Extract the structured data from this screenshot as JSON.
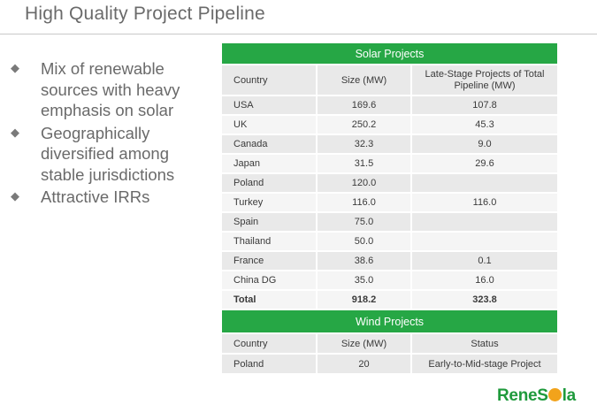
{
  "title": "High Quality Project Pipeline",
  "bullets": [
    {
      "text": "Mix of renewable sources with heavy emphasis on solar",
      "icon": "diamond-bullet-icon"
    },
    {
      "text": "Geographically diversified among stable jurisdictions",
      "icon": "diamond-bullet-icon"
    },
    {
      "text": "Attractive IRRs",
      "icon": "diamond-bullet-icon"
    }
  ],
  "bullet_glyph": "◆",
  "solar": {
    "title": "Solar Projects",
    "columns": [
      "Country",
      "Size (MW)",
      "Late-Stage Projects of Total Pipeline (MW)"
    ],
    "rows": [
      {
        "country": "USA",
        "size": "169.6",
        "late": "107.8"
      },
      {
        "country": "UK",
        "size": "250.2",
        "late": "45.3"
      },
      {
        "country": "Canada",
        "size": "32.3",
        "late": "9.0"
      },
      {
        "country": "Japan",
        "size": "31.5",
        "late": "29.6"
      },
      {
        "country": "Poland",
        "size": "120.0",
        "late": ""
      },
      {
        "country": "Turkey",
        "size": "116.0",
        "late": "116.0"
      },
      {
        "country": "Spain",
        "size": "75.0",
        "late": ""
      },
      {
        "country": "Thailand",
        "size": "50.0",
        "late": ""
      },
      {
        "country": "France",
        "size": "38.6",
        "late": "0.1"
      },
      {
        "country": "China DG",
        "size": "35.0",
        "late": "16.0"
      }
    ],
    "total": {
      "label": "Total",
      "size": "918.2",
      "late": "323.8"
    }
  },
  "wind": {
    "title": "Wind Projects",
    "columns": [
      "Country",
      "Size (MW)",
      "Status"
    ],
    "rows": [
      {
        "country": "Poland",
        "size": "20",
        "status": "Early-to-Mid-stage Project"
      }
    ]
  },
  "logo": {
    "before": "RenеS",
    "after": "la",
    "color": "#1f9a3c",
    "accent": "#f2a31b"
  },
  "colors": {
    "header_green": "#26a745",
    "row_dark": "#e9e9e9",
    "row_light": "#f5f5f5"
  }
}
